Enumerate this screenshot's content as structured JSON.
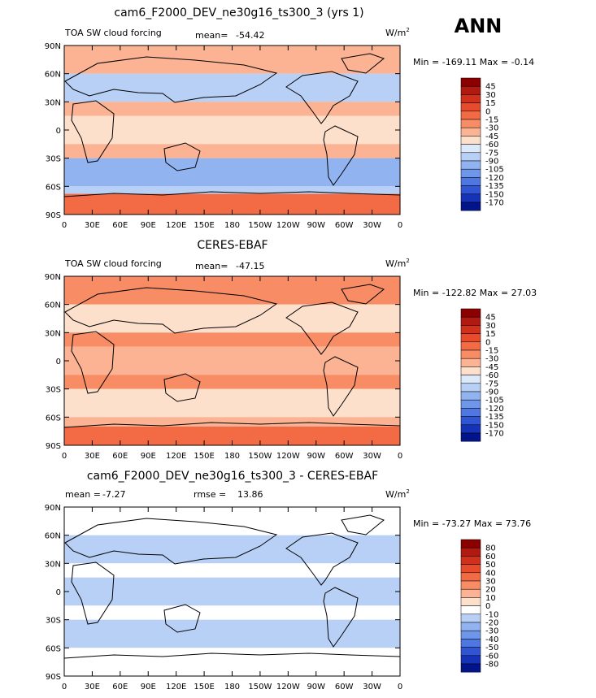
{
  "season": "ANN",
  "colors": {
    "frame": "#000000",
    "ocean_bg": "#ffe6d9",
    "land_outline": "#000000"
  },
  "axis": {
    "lat_ticks": [
      "90N",
      "60N",
      "30N",
      "0",
      "30S",
      "60S",
      "90S"
    ],
    "lon_ticks": [
      "0",
      "30E",
      "60E",
      "90E",
      "120E",
      "150E",
      "180",
      "150W",
      "120W",
      "90W",
      "60W",
      "30W",
      "0"
    ]
  },
  "panels": [
    {
      "title": "cam6_F2000_DEV_ne30g16_ts300_3 (yrs 1)",
      "left_label": "TOA SW cloud forcing",
      "stat_label": "mean=",
      "stat_value": "-54.42",
      "stat2_label": "",
      "stat2_value": "",
      "units": "W/m",
      "units_sup": "2",
      "min_label": "Min =",
      "min_value": "-169.11",
      "max_label": "Max =",
      "max_value": "-0.14"
    },
    {
      "title": "CERES-EBAF",
      "left_label": "TOA SW cloud forcing",
      "stat_label": "mean=",
      "stat_value": "-47.15",
      "stat2_label": "",
      "stat2_value": "",
      "units": "W/m",
      "units_sup": "2",
      "min_label": "Min =",
      "min_value": "-122.82",
      "max_label": "Max =",
      "max_value": "27.03"
    },
    {
      "title": "cam6_F2000_DEV_ne30g16_ts300_3 - CERES-EBAF",
      "left_label": "",
      "stat_label": "mean =",
      "stat_value": "-7.27",
      "stat2_label": "rmse =",
      "stat2_value": "13.86",
      "units": "W/m",
      "units_sup": "2",
      "min_label": "Min =",
      "min_value": "-73.27",
      "max_label": "Max =",
      "max_value": "73.76"
    }
  ],
  "chart_data": [
    {
      "type": "heatmap",
      "title": "cam6_F2000_DEV_ne30g16_ts300_3 (yrs 1)",
      "variable": "TOA SW cloud forcing",
      "units": "W/m2",
      "mean": -54.42,
      "min": -169.11,
      "max": -0.14,
      "colorbar": {
        "labels": [
          "45",
          "30",
          "15",
          "0",
          "-15",
          "-30",
          "-45",
          "-60",
          "-75",
          "-90",
          "-105",
          "-120",
          "-135",
          "-150",
          "-170"
        ],
        "colors": [
          "#8b0000",
          "#b01a10",
          "#d0301c",
          "#e84a2c",
          "#f26b44",
          "#f78c65",
          "#fbb393",
          "#fde0cc",
          "#dce9fa",
          "#b8d0f6",
          "#91b4f0",
          "#6e97ea",
          "#4e77e2",
          "#2f55d4",
          "#1533b8",
          "#02148c"
        ]
      },
      "bands": [
        {
          "lat": [
            60,
            90
          ],
          "value": -40
        },
        {
          "lat": [
            30,
            60
          ],
          "value": -90
        },
        {
          "lat": [
            15,
            30
          ],
          "value": -45
        },
        {
          "lat": [
            -15,
            15
          ],
          "value": -60
        },
        {
          "lat": [
            -30,
            -15
          ],
          "value": -45
        },
        {
          "lat": [
            -60,
            -30
          ],
          "value": -100
        },
        {
          "lat": [
            -68,
            -60
          ],
          "value": -80
        },
        {
          "lat": [
            -90,
            -68
          ],
          "value": -10
        }
      ]
    },
    {
      "type": "heatmap",
      "title": "CERES-EBAF",
      "variable": "TOA SW cloud forcing",
      "units": "W/m2",
      "mean": -47.15,
      "min": -122.82,
      "max": 27.03,
      "colorbar": {
        "labels": [
          "45",
          "30",
          "15",
          "0",
          "-15",
          "-30",
          "-45",
          "-60",
          "-75",
          "-90",
          "-105",
          "-120",
          "-135",
          "-150",
          "-170"
        ],
        "colors": [
          "#8b0000",
          "#b01a10",
          "#d0301c",
          "#e84a2c",
          "#f26b44",
          "#f78c65",
          "#fbb393",
          "#fde0cc",
          "#dce9fa",
          "#b8d0f6",
          "#91b4f0",
          "#6e97ea",
          "#4e77e2",
          "#2f55d4",
          "#1533b8",
          "#02148c"
        ]
      },
      "bands": [
        {
          "lat": [
            60,
            90
          ],
          "value": -30
        },
        {
          "lat": [
            30,
            60
          ],
          "value": -60
        },
        {
          "lat": [
            15,
            30
          ],
          "value": -30
        },
        {
          "lat": [
            -15,
            15
          ],
          "value": -45
        },
        {
          "lat": [
            -30,
            -15
          ],
          "value": -30
        },
        {
          "lat": [
            -60,
            -30
          ],
          "value": -60
        },
        {
          "lat": [
            -70,
            -60
          ],
          "value": -45
        },
        {
          "lat": [
            -90,
            -70
          ],
          "value": -5
        }
      ]
    },
    {
      "type": "heatmap",
      "title": "cam6_F2000_DEV_ne30g16_ts300_3 - CERES-EBAF",
      "units": "W/m2",
      "mean": -7.27,
      "rmse": 13.86,
      "min": -73.27,
      "max": 73.76,
      "colorbar": {
        "labels": [
          "80",
          "60",
          "50",
          "40",
          "30",
          "20",
          "10",
          "0",
          "-10",
          "-20",
          "-30",
          "-40",
          "-50",
          "-60",
          "-80"
        ],
        "colors": [
          "#8b0000",
          "#b01a10",
          "#d0301c",
          "#e84a2c",
          "#f26b44",
          "#f78c65",
          "#fbb393",
          "#fde0cc",
          "#ffffff",
          "#b8d0f6",
          "#91b4f0",
          "#6e97ea",
          "#4e77e2",
          "#2f55d4",
          "#1533b8",
          "#02148c"
        ]
      },
      "bands": [
        {
          "lat": [
            60,
            90
          ],
          "value": -5
        },
        {
          "lat": [
            30,
            60
          ],
          "value": -15
        },
        {
          "lat": [
            15,
            30
          ],
          "value": -5
        },
        {
          "lat": [
            -15,
            15
          ],
          "value": -15
        },
        {
          "lat": [
            -30,
            -15
          ],
          "value": -5
        },
        {
          "lat": [
            -60,
            -30
          ],
          "value": -15
        },
        {
          "lat": [
            -90,
            -60
          ],
          "value": -5
        }
      ]
    }
  ]
}
